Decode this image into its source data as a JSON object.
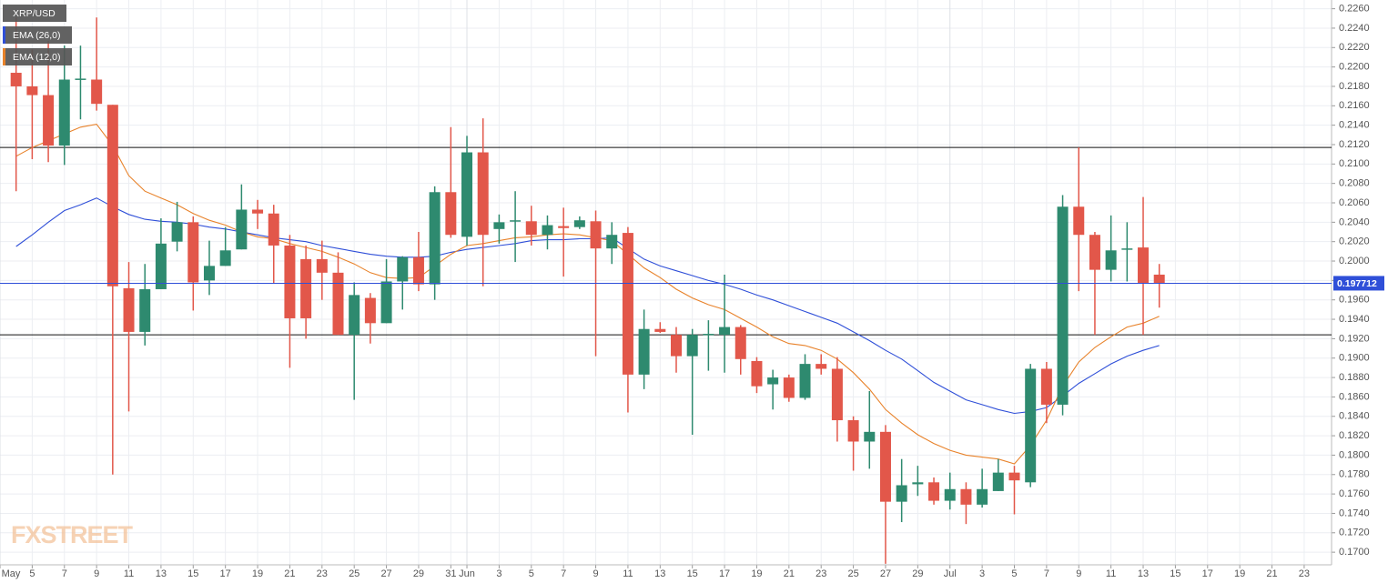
{
  "chart_data": {
    "type": "candlestick",
    "title": "XRP/USD",
    "x": [
      4,
      5,
      6,
      7,
      8,
      9,
      10,
      11,
      12,
      13,
      14,
      15,
      16,
      17,
      18,
      19,
      20,
      21,
      22,
      23,
      24,
      25,
      26,
      27,
      28,
      29,
      30,
      31,
      32,
      33,
      34,
      35,
      36,
      37,
      38,
      39,
      40,
      41,
      42,
      43,
      44,
      45,
      46,
      47,
      48,
      49,
      50,
      51,
      52,
      53,
      54,
      55,
      56,
      57,
      58,
      59,
      60,
      61,
      62,
      63,
      64,
      65,
      66,
      67,
      68,
      69,
      70,
      71,
      72,
      73,
      74,
      75
    ],
    "open": [
      0.2194,
      0.218,
      0.2171,
      0.2119,
      0.2187,
      0.2187,
      0.2161,
      0.1972,
      0.1927,
      0.1971,
      0.202,
      0.204,
      0.198,
      0.1995,
      0.2012,
      0.2053,
      0.2049,
      0.2016,
      0.2002,
      0.2002,
      0.1988,
      0.1924,
      0.1962,
      0.1936,
      0.1979,
      0.2004,
      0.1976,
      0.2071,
      0.2025,
      0.2112,
      0.2033,
      0.2041,
      0.2041,
      0.2027,
      0.2036,
      0.2035,
      0.2041,
      0.2013,
      0.2029,
      0.1883,
      0.193,
      0.1924,
      0.1902,
      0.1924,
      0.1924,
      0.1932,
      0.1897,
      0.1873,
      0.188,
      0.1859,
      0.1894,
      0.1889,
      0.1836,
      0.1814,
      0.1824,
      0.1752,
      0.177,
      0.1772,
      0.1753,
      0.1765,
      0.1749,
      0.1763,
      0.1782,
      0.1772,
      0.1889,
      0.1852,
      0.2056,
      0.2027,
      0.1991,
      0.2012,
      0.2014,
      0.1986
    ],
    "high": [
      0.2251,
      0.2218,
      0.2227,
      0.2222,
      0.2222,
      0.2251,
      0.2161,
      0.1999,
      0.1997,
      0.2044,
      0.2061,
      0.2046,
      0.2021,
      0.2035,
      0.2079,
      0.2063,
      0.2058,
      0.2027,
      0.2016,
      0.2021,
      0.2009,
      0.1978,
      0.1967,
      0.2002,
      0.2005,
      0.203,
      0.2077,
      0.2138,
      0.2129,
      0.2147,
      0.2048,
      0.2072,
      0.2057,
      0.2047,
      0.2055,
      0.2046,
      0.2052,
      0.204,
      0.2035,
      0.195,
      0.1937,
      0.1932,
      0.193,
      0.1939,
      0.1986,
      0.1934,
      0.1901,
      0.1888,
      0.1883,
      0.1904,
      0.1904,
      0.1901,
      0.184,
      0.1866,
      0.1831,
      0.1796,
      0.1789,
      0.1777,
      0.1782,
      0.1772,
      0.1786,
      0.1796,
      0.1789,
      0.1894,
      0.1896,
      0.2068,
      0.2117,
      0.203,
      0.2047,
      0.204,
      0.2066,
      0.1997
    ],
    "low": [
      0.2072,
      0.2105,
      0.2102,
      0.2099,
      0.2146,
      0.2155,
      0.178,
      0.1845,
      0.1913,
      0.1971,
      0.201,
      0.1949,
      0.1965,
      0.1995,
      0.2012,
      0.2033,
      0.1977,
      0.189,
      0.192,
      0.196,
      0.1924,
      0.1857,
      0.1915,
      0.1936,
      0.195,
      0.1969,
      0.196,
      0.2024,
      0.2016,
      0.1974,
      0.2018,
      0.1999,
      0.2016,
      0.2012,
      0.1984,
      0.2033,
      0.1902,
      0.1997,
      0.1844,
      0.1868,
      0.1926,
      0.1885,
      0.1821,
      0.1887,
      0.1885,
      0.1883,
      0.1864,
      0.1847,
      0.1855,
      0.1857,
      0.1883,
      0.1814,
      0.1784,
      0.1786,
      0.1688,
      0.1731,
      0.1758,
      0.1749,
      0.1744,
      0.1729,
      0.1746,
      0.1763,
      0.1739,
      0.1767,
      0.1833,
      0.1841,
      0.1969,
      0.1924,
      0.1979,
      0.1979,
      0.1924,
      0.1952
    ],
    "close": [
      0.218,
      0.2171,
      0.2119,
      0.2187,
      0.2188,
      0.2162,
      0.1974,
      0.1927,
      0.1971,
      0.2018,
      0.204,
      0.1978,
      0.1995,
      0.2011,
      0.2053,
      0.2049,
      0.2016,
      0.1941,
      0.1941,
      0.1988,
      0.1924,
      0.1965,
      0.1936,
      0.1979,
      0.2004,
      0.1976,
      0.2071,
      0.2027,
      0.2112,
      0.2027,
      0.204,
      0.2042,
      0.2027,
      0.2037,
      0.2034,
      0.2042,
      0.2013,
      0.2027,
      0.1883,
      0.193,
      0.1927,
      0.1902,
      0.1924,
      0.1925,
      0.1932,
      0.1899,
      0.1871,
      0.188,
      0.1859,
      0.1894,
      0.1889,
      0.1836,
      0.1814,
      0.1824,
      0.1752,
      0.1769,
      0.1772,
      0.1753,
      0.1765,
      0.1749,
      0.1765,
      0.1782,
      0.1774,
      0.1889,
      0.1852,
      0.2056,
      0.2027,
      0.1991,
      0.2011,
      0.2013,
      0.1977,
      0.197712
    ],
    "up_color": "#2e8a6f",
    "down_color": "#e2574a",
    "series": [
      {
        "name": "EMA (26,0)",
        "color": "#2f4fd8",
        "values": [
          0.2015,
          0.2027,
          0.204,
          0.2052,
          0.2058,
          0.2065,
          0.2056,
          0.2048,
          0.2043,
          0.2041,
          0.204,
          0.2038,
          0.2035,
          0.2033,
          0.203,
          0.2027,
          0.2024,
          0.2022,
          0.202,
          0.2016,
          0.2013,
          0.201,
          0.2007,
          0.2005,
          0.2004,
          0.2004,
          0.2005,
          0.2009,
          0.2012,
          0.2014,
          0.2016,
          0.2018,
          0.2021,
          0.2022,
          0.2022,
          0.2023,
          0.2023,
          0.2024,
          0.2013,
          0.2002,
          0.1995,
          0.199,
          0.1985,
          0.198,
          0.1976,
          0.1971,
          0.1965,
          0.196,
          0.1954,
          0.1948,
          0.1942,
          0.1936,
          0.1927,
          0.1918,
          0.1908,
          0.1899,
          0.1887,
          0.1875,
          0.1866,
          0.1857,
          0.1852,
          0.1847,
          0.1843,
          0.1845,
          0.1849,
          0.1861,
          0.1874,
          0.1884,
          0.1894,
          0.1902,
          0.1908,
          0.1913
        ]
      },
      {
        "name": "EMA (12,0)",
        "color": "#e8822a",
        "values": [
          0.2108,
          0.2117,
          0.2124,
          0.2131,
          0.2138,
          0.2141,
          0.2119,
          0.2088,
          0.2072,
          0.2065,
          0.2058,
          0.2049,
          0.2042,
          0.2037,
          0.203,
          0.2025,
          0.2023,
          0.2018,
          0.2014,
          0.201,
          0.2004,
          0.1997,
          0.1988,
          0.1983,
          0.1982,
          0.1983,
          0.1995,
          0.2007,
          0.2016,
          0.2018,
          0.2021,
          0.2024,
          0.2025,
          0.2027,
          0.2028,
          0.2027,
          0.2024,
          0.2021,
          0.2007,
          0.1993,
          0.1983,
          0.1971,
          0.1962,
          0.1955,
          0.195,
          0.1941,
          0.1932,
          0.1922,
          0.1915,
          0.1913,
          0.1908,
          0.1899,
          0.1885,
          0.1868,
          0.1847,
          0.1833,
          0.1821,
          0.1812,
          0.1805,
          0.18,
          0.1798,
          0.1796,
          0.1791,
          0.181,
          0.1836,
          0.1871,
          0.1896,
          0.1911,
          0.1922,
          0.1932,
          0.1936,
          0.1943
        ]
      }
    ],
    "levels": [
      0.2117,
      0.1924
    ],
    "last_price": 0.197712,
    "last_price_color": "#2f4fd8",
    "watermark": "FXSTREET",
    "grid": true,
    "xlim": [
      3,
      85.7
    ],
    "ylim": [
      0.1687,
      0.2269
    ],
    "xticks": [
      {
        "value": 3,
        "label": "May"
      },
      5,
      7,
      9,
      11,
      13,
      15,
      17,
      19,
      21,
      23,
      25,
      27,
      29,
      31,
      {
        "value": 32,
        "label": "Jun"
      },
      {
        "value": 34,
        "label": "3"
      },
      {
        "value": 36,
        "label": "5"
      },
      {
        "value": 38,
        "label": "7"
      },
      {
        "value": 40,
        "label": "9"
      },
      {
        "value": 42,
        "label": "11"
      },
      {
        "value": 44,
        "label": "13"
      },
      {
        "value": 46,
        "label": "15"
      },
      {
        "value": 48,
        "label": "17"
      },
      {
        "value": 50,
        "label": "19"
      },
      {
        "value": 52,
        "label": "21"
      },
      {
        "value": 54,
        "label": "23"
      },
      {
        "value": 56,
        "label": "25"
      },
      {
        "value": 58,
        "label": "27"
      },
      {
        "value": 60,
        "label": "29"
      },
      {
        "value": 62,
        "label": "Jul"
      },
      {
        "value": 64,
        "label": "3"
      },
      {
        "value": 66,
        "label": "5"
      },
      {
        "value": 68,
        "label": "7"
      },
      {
        "value": 70,
        "label": "9"
      },
      {
        "value": 72,
        "label": "11"
      },
      {
        "value": 74,
        "label": "13"
      },
      {
        "value": 76,
        "label": "15"
      },
      {
        "value": 78,
        "label": "17"
      },
      {
        "value": 80,
        "label": "19"
      },
      {
        "value": 82,
        "label": "21"
      },
      {
        "value": 84,
        "label": "23"
      }
    ],
    "yticks": [
      {
        "value": 0.226,
        "label": "0.2260"
      },
      {
        "value": 0.224,
        "label": "0.2240"
      },
      {
        "value": 0.222,
        "label": "0.2220"
      },
      {
        "value": 0.22,
        "label": "0.2200"
      },
      {
        "value": 0.218,
        "label": "0.2180"
      },
      {
        "value": 0.216,
        "label": "0.2160"
      },
      {
        "value": 0.214,
        "label": "0.2140"
      },
      {
        "value": 0.212,
        "label": "0.2120"
      },
      {
        "value": 0.21,
        "label": "0.2100"
      },
      {
        "value": 0.208,
        "label": "0.2080"
      },
      {
        "value": 0.206,
        "label": "0.2060"
      },
      {
        "value": 0.204,
        "label": "0.2040"
      },
      {
        "value": 0.202,
        "label": "0.2020"
      },
      {
        "value": 0.2,
        "label": "0.2000"
      },
      {
        "value": 0.198,
        "label": "0.1980"
      },
      {
        "value": 0.196,
        "label": "0.1960"
      },
      {
        "value": 0.194,
        "label": "0.1940"
      },
      {
        "value": 0.192,
        "label": "0.1920"
      },
      {
        "value": 0.19,
        "label": "0.1900"
      },
      {
        "value": 0.188,
        "label": "0.1880"
      },
      {
        "value": 0.186,
        "label": "0.1860"
      },
      {
        "value": 0.184,
        "label": "0.1840"
      },
      {
        "value": 0.182,
        "label": "0.1820"
      },
      {
        "value": 0.18,
        "label": "0.1800"
      },
      {
        "value": 0.178,
        "label": "0.1780"
      },
      {
        "value": 0.176,
        "label": "0.1760"
      },
      {
        "value": 0.174,
        "label": "0.1740"
      },
      {
        "value": 0.172,
        "label": "0.1720"
      },
      {
        "value": 0.17,
        "label": "0.1700"
      }
    ]
  }
}
